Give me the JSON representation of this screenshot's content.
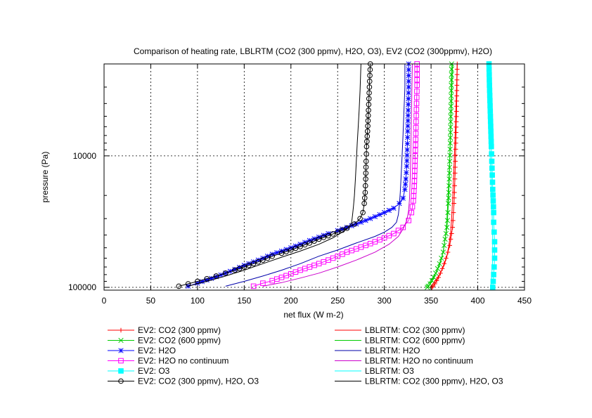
{
  "chart_data": {
    "type": "line",
    "title": "Comparison of heating rate, LBLRTM (CO2 (300 ppmv), H2O, O3), EV2 (CO2 (300ppmv), H2O)",
    "xlabel": "net flux (W m-2)",
    "ylabel": "pressure (Pa)",
    "xlim": [
      0,
      450
    ],
    "xticks": [
      0,
      50,
      100,
      150,
      200,
      250,
      300,
      350,
      400,
      450
    ],
    "ylim": [
      105000,
      2000
    ],
    "yscale": "log",
    "yticks": [
      10000,
      100000
    ],
    "grid": true,
    "legend_position": "bottom",
    "series": [
      {
        "name": "EV2: CO2 (300 ppmv)",
        "color": "#ff0000",
        "marker": "plus",
        "style": "line-marker",
        "points": [
          [
            351,
            100000
          ],
          [
            352,
            98000
          ],
          [
            354,
            94000
          ],
          [
            356,
            89000
          ],
          [
            358,
            84000
          ],
          [
            360,
            78000
          ],
          [
            362,
            72000
          ],
          [
            364,
            66000
          ],
          [
            366,
            60000
          ],
          [
            368,
            54000
          ],
          [
            370,
            48000
          ],
          [
            371,
            43000
          ],
          [
            372,
            39000
          ],
          [
            373,
            35000
          ],
          [
            373.5,
            31000
          ],
          [
            374,
            27000
          ],
          [
            374.5,
            23000
          ],
          [
            375,
            19000
          ],
          [
            375.5,
            15000
          ],
          [
            376,
            11000
          ],
          [
            376.5,
            8000
          ],
          [
            377,
            5500
          ],
          [
            377.5,
            3500
          ],
          [
            378,
            2000
          ]
        ]
      },
      {
        "name": "EV2: CO2 (600 ppmv)",
        "color": "#00cc00",
        "marker": "cross",
        "style": "line-marker",
        "points": [
          [
            346,
            100000
          ],
          [
            347,
            98000
          ],
          [
            349,
            94000
          ],
          [
            351,
            89000
          ],
          [
            353,
            84000
          ],
          [
            355,
            78000
          ],
          [
            357,
            72000
          ],
          [
            359,
            66000
          ],
          [
            361,
            60000
          ],
          [
            363,
            54000
          ],
          [
            364,
            48000
          ],
          [
            365,
            43000
          ],
          [
            366,
            39000
          ],
          [
            367,
            35000
          ],
          [
            367.5,
            31000
          ],
          [
            368,
            27000
          ],
          [
            368.5,
            23000
          ],
          [
            369,
            19000
          ],
          [
            369.5,
            15000
          ],
          [
            370,
            11000
          ],
          [
            370.5,
            8000
          ],
          [
            371,
            5500
          ],
          [
            371.5,
            3500
          ],
          [
            372,
            2000
          ]
        ]
      },
      {
        "name": "EV2: H2O",
        "color": "#0000ff",
        "marker": "star",
        "style": "line-marker",
        "points": [
          [
            90,
            98000
          ],
          [
            100,
            93000
          ],
          [
            110,
            88000
          ],
          [
            120,
            83000
          ],
          [
            130,
            78000
          ],
          [
            140,
            73000
          ],
          [
            150,
            68000
          ],
          [
            160,
            64000
          ],
          [
            170,
            60000
          ],
          [
            180,
            56000
          ],
          [
            190,
            53000
          ],
          [
            200,
            50000
          ],
          [
            210,
            47000
          ],
          [
            220,
            44000
          ],
          [
            230,
            41500
          ],
          [
            240,
            39000
          ],
          [
            250,
            37000
          ],
          [
            260,
            35000
          ],
          [
            270,
            33000
          ],
          [
            280,
            31000
          ],
          [
            290,
            29000
          ],
          [
            300,
            27000
          ],
          [
            310,
            25000
          ],
          [
            316,
            23000
          ],
          [
            320,
            21000
          ],
          [
            322,
            18000
          ],
          [
            323,
            15000
          ],
          [
            324,
            12000
          ],
          [
            324.5,
            9000
          ],
          [
            325,
            6500
          ],
          [
            325.5,
            4500
          ],
          [
            326,
            3000
          ],
          [
            326,
            2000
          ]
        ]
      },
      {
        "name": "EV2: H2O no continuum",
        "color": "#ff00ff",
        "marker": "square",
        "style": "line-marker",
        "points": [
          [
            160,
            98000
          ],
          [
            170,
            93000
          ],
          [
            180,
            89000
          ],
          [
            190,
            84000
          ],
          [
            200,
            79000
          ],
          [
            210,
            74000
          ],
          [
            220,
            70000
          ],
          [
            230,
            66000
          ],
          [
            240,
            62000
          ],
          [
            250,
            58000
          ],
          [
            260,
            54000
          ],
          [
            270,
            51000
          ],
          [
            280,
            48000
          ],
          [
            290,
            45000
          ],
          [
            300,
            42000
          ],
          [
            310,
            39000
          ],
          [
            320,
            35000
          ],
          [
            326,
            31000
          ],
          [
            329,
            27000
          ],
          [
            331,
            22000
          ],
          [
            332,
            17000
          ],
          [
            332.5,
            13000
          ],
          [
            333,
            10000
          ],
          [
            333.5,
            7500
          ],
          [
            334,
            5500
          ],
          [
            334.5,
            4000
          ],
          [
            335,
            2900
          ],
          [
            335,
            2000
          ]
        ]
      },
      {
        "name": "EV2: O3",
        "color": "#00ffff",
        "marker": "filled-square",
        "style": "line-marker",
        "points": [
          [
            416,
            100000
          ],
          [
            416.5,
            90000
          ],
          [
            417,
            80000
          ],
          [
            417.5,
            70000
          ],
          [
            418,
            60000
          ],
          [
            418,
            52000
          ],
          [
            418,
            45000
          ],
          [
            417.5,
            38000
          ],
          [
            417,
            32000
          ],
          [
            417,
            27000
          ],
          [
            416.5,
            22000
          ],
          [
            416,
            18000
          ],
          [
            415.5,
            14000
          ],
          [
            415,
            11000
          ],
          [
            414.5,
            8500
          ],
          [
            414,
            6500
          ],
          [
            413.5,
            5000
          ],
          [
            413,
            3800
          ],
          [
            412.5,
            2900
          ],
          [
            412,
            2000
          ]
        ]
      },
      {
        "name": "EV2: CO2 (300 ppmv), H2O, O3",
        "color": "#000000",
        "marker": "circle",
        "style": "line-marker",
        "points": [
          [
            80,
            98000
          ],
          [
            90,
            94000
          ],
          [
            100,
            90000
          ],
          [
            110,
            86000
          ],
          [
            120,
            82000
          ],
          [
            130,
            78000
          ],
          [
            140,
            74000
          ],
          [
            150,
            70000
          ],
          [
            160,
            66000
          ],
          [
            170,
            62000
          ],
          [
            180,
            58000
          ],
          [
            190,
            55000
          ],
          [
            200,
            52000
          ],
          [
            210,
            49000
          ],
          [
            220,
            46000
          ],
          [
            230,
            43000
          ],
          [
            240,
            40500
          ],
          [
            250,
            38000
          ],
          [
            260,
            35500
          ],
          [
            268,
            33000
          ],
          [
            274,
            30000
          ],
          [
            277,
            27000
          ],
          [
            278.5,
            23000
          ],
          [
            279.5,
            19000
          ],
          [
            280,
            15000
          ],
          [
            280.5,
            11000
          ],
          [
            281,
            8500
          ],
          [
            282,
            6500
          ],
          [
            283,
            4500
          ],
          [
            284,
            3000
          ],
          [
            285,
            2000
          ]
        ]
      },
      {
        "name": "LBLRTM: CO2 (300 ppmv)",
        "color": "#ff0000",
        "marker": "none",
        "style": "line",
        "points": [
          [
            349,
            100000
          ],
          [
            352,
            94000
          ],
          [
            356,
            86000
          ],
          [
            360,
            78000
          ],
          [
            364,
            68000
          ],
          [
            367,
            58000
          ],
          [
            369,
            48000
          ],
          [
            371,
            38000
          ],
          [
            372,
            30000
          ],
          [
            373,
            22000
          ],
          [
            374,
            15000
          ],
          [
            375,
            10000
          ],
          [
            376,
            6000
          ],
          [
            377,
            3500
          ],
          [
            378,
            2000
          ]
        ]
      },
      {
        "name": "LBLRTM: CO2 (600 ppmv)",
        "color": "#00cc00",
        "marker": "none",
        "style": "line",
        "points": [
          [
            344,
            100000
          ],
          [
            347,
            94000
          ],
          [
            351,
            86000
          ],
          [
            355,
            78000
          ],
          [
            359,
            68000
          ],
          [
            362,
            58000
          ],
          [
            364,
            48000
          ],
          [
            366,
            38000
          ],
          [
            367,
            30000
          ],
          [
            368,
            22000
          ],
          [
            369,
            15000
          ],
          [
            370,
            10000
          ],
          [
            371,
            6000
          ],
          [
            372,
            3500
          ],
          [
            373,
            2000
          ]
        ]
      },
      {
        "name": "LBLRTM: H2O",
        "color": "#0000aa",
        "marker": "none",
        "style": "line",
        "points": [
          [
            130,
            98000
          ],
          [
            150,
            90000
          ],
          [
            170,
            82000
          ],
          [
            190,
            74000
          ],
          [
            210,
            66000
          ],
          [
            230,
            58000
          ],
          [
            250,
            52000
          ],
          [
            270,
            46000
          ],
          [
            290,
            41000
          ],
          [
            300,
            38000
          ],
          [
            308,
            35000
          ],
          [
            313,
            32000
          ],
          [
            315,
            28000
          ],
          [
            316,
            24000
          ],
          [
            317,
            19000
          ],
          [
            318,
            14000
          ],
          [
            319,
            10000
          ],
          [
            320,
            7000
          ],
          [
            321,
            4500
          ],
          [
            322,
            3000
          ],
          [
            322,
            2000
          ]
        ]
      },
      {
        "name": "LBLRTM: H2O no continuum",
        "color": "#cc00cc",
        "marker": "none",
        "style": "line",
        "points": [
          [
            170,
            98000
          ],
          [
            190,
            92000
          ],
          [
            210,
            85000
          ],
          [
            230,
            78000
          ],
          [
            250,
            70000
          ],
          [
            270,
            62000
          ],
          [
            290,
            54000
          ],
          [
            305,
            47000
          ],
          [
            315,
            41000
          ],
          [
            320,
            36000
          ],
          [
            324,
            31000
          ],
          [
            326,
            26000
          ],
          [
            327,
            21000
          ],
          [
            327.5,
            16000
          ],
          [
            328,
            12000
          ],
          [
            328.5,
            8000
          ],
          [
            329,
            5000
          ],
          [
            329.5,
            3000
          ],
          [
            330,
            2000
          ]
        ]
      },
      {
        "name": "LBLRTM: O3",
        "color": "#00ffff",
        "marker": "none",
        "style": "line",
        "points": [
          [
            414,
            100000
          ],
          [
            415,
            80000
          ],
          [
            416,
            60000
          ],
          [
            416,
            45000
          ],
          [
            415.5,
            32000
          ],
          [
            415,
            22000
          ],
          [
            414,
            14000
          ],
          [
            413,
            9000
          ],
          [
            412,
            5500
          ],
          [
            411,
            3500
          ],
          [
            410,
            2000
          ]
        ]
      },
      {
        "name": "LBLRTM: CO2 (300 ppmv), H2O, O3",
        "color": "#000000",
        "marker": "none",
        "style": "line",
        "points": [
          [
            90,
            98000
          ],
          [
            110,
            90000
          ],
          [
            130,
            82000
          ],
          [
            150,
            74000
          ],
          [
            170,
            66000
          ],
          [
            190,
            59000
          ],
          [
            210,
            53000
          ],
          [
            230,
            47000
          ],
          [
            245,
            42000
          ],
          [
            255,
            38000
          ],
          [
            262,
            35000
          ],
          [
            265,
            32000
          ],
          [
            266,
            28000
          ],
          [
            267,
            24000
          ],
          [
            268,
            20000
          ],
          [
            269,
            15000
          ],
          [
            270,
            11000
          ],
          [
            271,
            8000
          ],
          [
            272,
            6000
          ],
          [
            273,
            4500
          ],
          [
            274,
            3200
          ],
          [
            275,
            2000
          ]
        ]
      }
    ]
  }
}
